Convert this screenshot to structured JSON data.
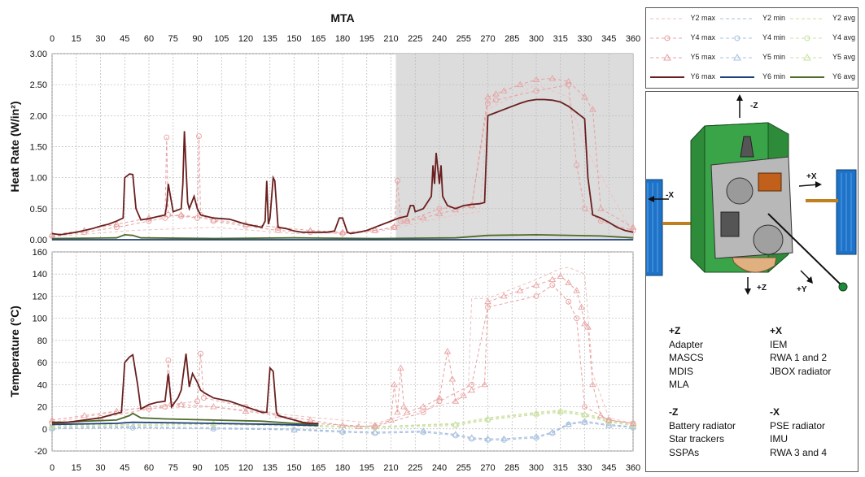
{
  "chart_data": [
    {
      "type": "line",
      "title": "MTA",
      "xlabel": "",
      "ylabel": "Heat Rate (W/in²)",
      "xlim": [
        0,
        360
      ],
      "ylim": [
        0,
        3.0
      ],
      "x_ticks": [
        "0",
        "15",
        "30",
        "45",
        "60",
        "75",
        "90",
        "105",
        "120",
        "135",
        "150",
        "165",
        "180",
        "195",
        "210",
        "225",
        "240",
        "255",
        "270",
        "285",
        "300",
        "315",
        "330",
        "345",
        "360"
      ],
      "y_ticks": [
        "0.00",
        "0.50",
        "1.00",
        "1.50",
        "2.00",
        "2.50",
        "3.00"
      ],
      "grid": true,
      "shaded_region": {
        "x_start": 213,
        "x_end": 360,
        "color": "#dcdcdc"
      },
      "series": [
        {
          "name": "Y6 max",
          "color": "#6b1f1f",
          "style": "solid",
          "x": [
            0,
            5,
            10,
            15,
            20,
            25,
            30,
            35,
            40,
            44,
            45,
            48,
            50,
            52,
            55,
            60,
            65,
            70,
            71,
            72,
            75,
            80,
            81,
            82,
            84,
            85,
            88,
            90,
            92,
            95,
            100,
            110,
            120,
            130,
            132,
            133,
            134,
            135,
            137,
            138,
            140,
            145,
            150,
            155,
            160,
            165,
            170,
            175,
            178,
            180,
            183,
            185,
            190,
            195,
            200,
            205,
            210,
            215,
            220,
            222,
            224,
            225,
            230,
            235,
            236,
            237,
            238,
            240,
            241,
            242,
            245,
            250,
            255,
            260,
            265,
            268,
            270,
            275,
            280,
            285,
            290,
            295,
            300,
            305,
            310,
            315,
            320,
            325,
            330,
            332,
            335,
            340,
            345,
            350,
            355,
            360
          ],
          "y": [
            0.1,
            0.08,
            0.1,
            0.12,
            0.15,
            0.18,
            0.22,
            0.25,
            0.3,
            0.35,
            1.0,
            1.06,
            1.05,
            0.5,
            0.32,
            0.34,
            0.37,
            0.4,
            0.55,
            0.9,
            0.45,
            0.5,
            0.9,
            1.75,
            0.6,
            0.5,
            0.7,
            0.5,
            0.4,
            0.38,
            0.35,
            0.33,
            0.25,
            0.2,
            0.3,
            0.95,
            0.25,
            0.35,
            1.0,
            0.95,
            0.2,
            0.18,
            0.14,
            0.12,
            0.12,
            0.12,
            0.12,
            0.14,
            0.35,
            0.35,
            0.12,
            0.1,
            0.12,
            0.15,
            0.2,
            0.25,
            0.3,
            0.35,
            0.38,
            0.55,
            0.55,
            0.45,
            0.5,
            0.7,
            1.2,
            0.9,
            1.4,
            0.9,
            1.2,
            0.7,
            0.55,
            0.5,
            0.55,
            0.57,
            0.58,
            0.6,
            2.0,
            2.05,
            2.1,
            2.15,
            2.2,
            2.24,
            2.26,
            2.26,
            2.25,
            2.22,
            2.15,
            2.05,
            1.95,
            1.0,
            0.4,
            0.35,
            0.28,
            0.2,
            0.15,
            0.12
          ]
        },
        {
          "name": "Y6 min",
          "color": "#1f3f7a",
          "style": "solid",
          "x": [
            0,
            360
          ],
          "y": [
            0.0,
            0.0
          ]
        },
        {
          "name": "Y6 avg",
          "color": "#4f6b2a",
          "style": "solid",
          "x": [
            0,
            40,
            45,
            50,
            55,
            100,
            150,
            200,
            250,
            270,
            300,
            340,
            360
          ],
          "y": [
            0.02,
            0.03,
            0.08,
            0.07,
            0.03,
            0.02,
            0.03,
            0.02,
            0.03,
            0.07,
            0.08,
            0.06,
            0.03
          ]
        },
        {
          "name": "Y5 max",
          "color": "#e8a0a0",
          "style": "dashed-triangle",
          "x": [
            0,
            20,
            40,
            60,
            80,
            100,
            120,
            140,
            160,
            180,
            200,
            212,
            220,
            230,
            240,
            250,
            260,
            270,
            275,
            280,
            290,
            300,
            310,
            320,
            330,
            335,
            340,
            360
          ],
          "y": [
            0.08,
            0.15,
            0.25,
            0.35,
            0.4,
            0.32,
            0.25,
            0.2,
            0.15,
            0.12,
            0.15,
            0.2,
            0.3,
            0.35,
            0.42,
            0.48,
            0.55,
            2.3,
            2.35,
            2.4,
            2.5,
            2.58,
            2.6,
            2.55,
            2.3,
            2.1,
            0.5,
            0.2
          ]
        },
        {
          "name": "Y4 max",
          "color": "#e8a0a0",
          "style": "dashed-circle",
          "x": [
            0,
            20,
            40,
            60,
            70,
            71,
            72,
            80,
            90,
            91,
            92,
            100,
            120,
            140,
            160,
            180,
            200,
            212,
            214,
            216,
            220,
            240,
            260,
            270,
            275,
            300,
            320,
            325,
            330,
            340,
            360
          ],
          "y": [
            0.06,
            0.12,
            0.2,
            0.3,
            0.35,
            1.65,
            0.4,
            0.38,
            0.35,
            1.67,
            0.4,
            0.3,
            0.22,
            0.15,
            0.12,
            0.1,
            0.15,
            0.2,
            0.95,
            0.3,
            0.3,
            0.5,
            0.55,
            2.2,
            2.25,
            2.4,
            2.5,
            1.2,
            0.5,
            0.3,
            0.15
          ]
        },
        {
          "name": "Y2 max",
          "color": "#f0c0c0",
          "style": "dashed",
          "x": [
            0,
            50,
            100,
            150,
            200,
            250,
            265,
            270,
            300,
            320,
            330,
            360
          ],
          "y": [
            0.05,
            0.15,
            0.2,
            0.1,
            0.12,
            0.4,
            0.45,
            2.1,
            2.5,
            2.3,
            1.5,
            0.1
          ]
        }
      ]
    },
    {
      "type": "line",
      "title": "",
      "xlabel": "",
      "ylabel": "Temperature (°C)",
      "xlim": [
        0,
        360
      ],
      "ylim": [
        -20,
        160
      ],
      "x_ticks": [
        "0",
        "15",
        "30",
        "45",
        "60",
        "75",
        "90",
        "105",
        "120",
        "135",
        "150",
        "165",
        "180",
        "195",
        "210",
        "225",
        "240",
        "255",
        "270",
        "285",
        "300",
        "315",
        "330",
        "345",
        "360"
      ],
      "y_ticks": [
        "-20",
        "0",
        "20",
        "40",
        "60",
        "80",
        "100",
        "120",
        "140",
        "160"
      ],
      "grid": true,
      "series": [
        {
          "name": "Y6 max",
          "color": "#6b1f1f",
          "style": "solid",
          "x": [
            0,
            10,
            20,
            30,
            40,
            43,
            45,
            48,
            50,
            53,
            55,
            60,
            65,
            70,
            72,
            74,
            78,
            80,
            83,
            85,
            87,
            90,
            92,
            95,
            100,
            110,
            120,
            130,
            133,
            135,
            137,
            139,
            140,
            145,
            150,
            155,
            160,
            165
          ],
          "y": [
            6,
            6,
            8,
            10,
            14,
            15,
            60,
            65,
            67,
            40,
            18,
            22,
            24,
            25,
            50,
            20,
            28,
            35,
            68,
            38,
            50,
            42,
            35,
            32,
            28,
            25,
            20,
            15,
            15,
            55,
            52,
            15,
            12,
            10,
            8,
            6,
            5,
            5
          ]
        },
        {
          "name": "Y6 avg",
          "color": "#4f6b2a",
          "style": "solid",
          "x": [
            0,
            20,
            40,
            48,
            50,
            55,
            70,
            100,
            130,
            150,
            165
          ],
          "y": [
            5,
            7,
            8,
            12,
            14,
            10,
            9,
            8,
            7,
            5,
            4
          ]
        },
        {
          "name": "Y6 min",
          "color": "#1f3f7a",
          "style": "solid",
          "x": [
            0,
            40,
            50,
            100,
            140,
            165
          ],
          "y": [
            4,
            5,
            6,
            5,
            4,
            3
          ]
        },
        {
          "name": "Y5 max",
          "color": "#e8a0a0",
          "style": "dashed-triangle",
          "x": [
            0,
            20,
            40,
            60,
            80,
            100,
            120,
            140,
            160,
            180,
            190,
            200,
            210,
            212,
            214,
            216,
            218,
            220,
            230,
            240,
            245,
            248,
            250,
            255,
            260,
            268,
            270,
            280,
            290,
            300,
            310,
            315,
            320,
            325,
            328,
            330,
            332,
            335,
            340,
            345,
            360
          ],
          "y": [
            8,
            12,
            16,
            20,
            22,
            20,
            16,
            12,
            8,
            3,
            2,
            3,
            8,
            40,
            15,
            55,
            20,
            15,
            20,
            28,
            70,
            45,
            25,
            30,
            35,
            40,
            115,
            120,
            125,
            130,
            135,
            138,
            132,
            125,
            110,
            95,
            92,
            40,
            12,
            8,
            5
          ]
        },
        {
          "name": "Y2 max",
          "color": "#f0c0c0",
          "style": "dashed",
          "x": [
            0,
            50,
            100,
            150,
            200,
            250,
            258,
            260,
            270,
            300,
            315,
            320,
            330,
            335,
            345,
            360
          ],
          "y": [
            6,
            18,
            20,
            12,
            5,
            25,
            40,
            118,
            118,
            135,
            145,
            146,
            140,
            50,
            10,
            5
          ]
        },
        {
          "name": "Y4 max",
          "color": "#e8a0a0",
          "style": "dashed-circle",
          "x": [
            0,
            30,
            60,
            70,
            72,
            74,
            90,
            92,
            94,
            120,
            160,
            200,
            230,
            240,
            260,
            270,
            300,
            310,
            320,
            325,
            330,
            345,
            360
          ],
          "y": [
            5,
            10,
            18,
            20,
            62,
            22,
            25,
            68,
            28,
            20,
            5,
            2,
            15,
            25,
            40,
            110,
            120,
            130,
            115,
            100,
            20,
            8,
            5
          ]
        },
        {
          "name": "Y2 avg",
          "color": "#c8e0a0",
          "style": "dashed",
          "x": [
            0,
            100,
            200,
            250,
            270,
            300,
            315,
            330,
            345,
            360
          ],
          "y": [
            3,
            5,
            2,
            5,
            10,
            15,
            17,
            14,
            8,
            4
          ]
        },
        {
          "name": "Y5 avg",
          "color": "#c8e0a0",
          "style": "dashed-triangle",
          "x": [
            0,
            100,
            200,
            250,
            270,
            300,
            315,
            330,
            345,
            360
          ],
          "y": [
            3,
            5,
            2,
            4,
            9,
            14,
            16,
            13,
            7,
            4
          ]
        },
        {
          "name": "Y4 avg",
          "color": "#c8e0a0",
          "style": "dashed-circle",
          "x": [
            0,
            100,
            200,
            250,
            270,
            300,
            315,
            330,
            345,
            360
          ],
          "y": [
            2,
            4,
            1,
            3,
            8,
            13,
            15,
            12,
            6,
            3
          ]
        },
        {
          "name": "Y2 min",
          "color": "#a8c0e0",
          "style": "dashed",
          "x": [
            0,
            50,
            100,
            150,
            180,
            200,
            230,
            250,
            260,
            270,
            280,
            300,
            310,
            320,
            330,
            345,
            360
          ],
          "y": [
            1,
            2,
            1,
            0,
            -2,
            -3,
            -2,
            -5,
            -8,
            -9,
            -9,
            -7,
            -3,
            5,
            7,
            4,
            2
          ]
        },
        {
          "name": "Y4 min",
          "color": "#a8c0e0",
          "style": "dashed-circle",
          "x": [
            0,
            50,
            100,
            150,
            180,
            200,
            230,
            250,
            260,
            270,
            280,
            300,
            310,
            320,
            330,
            345,
            360
          ],
          "y": [
            0,
            1,
            0,
            -1,
            -3,
            -4,
            -3,
            -6,
            -9,
            -10,
            -10,
            -8,
            -4,
            4,
            6,
            3,
            1
          ]
        },
        {
          "name": "Y5 min",
          "color": "#a8c0e0",
          "style": "dashed-triangle",
          "x": [
            0,
            50,
            100,
            150,
            180,
            200,
            230,
            250,
            260,
            270,
            280,
            300,
            310,
            320,
            330,
            345,
            360
          ],
          "y": [
            1,
            2,
            1,
            -1,
            -2,
            -3,
            -2,
            -5,
            -8,
            -9,
            -9,
            -7,
            -3,
            4,
            6,
            3,
            2
          ]
        }
      ]
    }
  ],
  "legend": {
    "entries": [
      {
        "label": "Y2 max",
        "color": "#f0c0c0",
        "marker": "none"
      },
      {
        "label": "Y2 min",
        "color": "#a8c0e0",
        "marker": "none"
      },
      {
        "label": "Y2 avg",
        "color": "#c8e0a0",
        "marker": "none"
      },
      {
        "label": "Y4 max",
        "color": "#e8a0a0",
        "marker": "circle"
      },
      {
        "label": "Y4 min",
        "color": "#a8c0e0",
        "marker": "circle"
      },
      {
        "label": "Y4 avg",
        "color": "#c8e0a0",
        "marker": "circle"
      },
      {
        "label": "Y5 max",
        "color": "#e8a0a0",
        "marker": "triangle"
      },
      {
        "label": "Y5 min",
        "color": "#a8c0e0",
        "marker": "triangle"
      },
      {
        "label": "Y5 avg",
        "color": "#c8e0a0",
        "marker": "triangle"
      },
      {
        "label": "Y6 max",
        "color": "#6b1f1f",
        "marker": "solid"
      },
      {
        "label": "Y6 min",
        "color": "#1f3f7a",
        "marker": "solid"
      },
      {
        "label": "Y6 avg",
        "color": "#4f6b2a",
        "marker": "solid"
      }
    ]
  },
  "diagram": {
    "axis_labels": {
      "minus_z": "-Z",
      "plus_z": "+Z",
      "plus_x": "+X",
      "minus_x": "-X",
      "plus_y": "+Y"
    },
    "groups": [
      {
        "heading": "+Z",
        "items": [
          "Adapter",
          "MASCS",
          "MDIS",
          "MLA"
        ]
      },
      {
        "heading": "+X",
        "items": [
          "IEM",
          "RWA 1 and 2",
          "JBOX radiator"
        ]
      },
      {
        "heading": "-Z",
        "items": [
          "Battery radiator",
          "Star trackers",
          "SSPAs"
        ]
      },
      {
        "heading": "-X",
        "items": [
          "PSE radiator",
          "IMU",
          "RWA 3 and 4"
        ]
      }
    ]
  }
}
